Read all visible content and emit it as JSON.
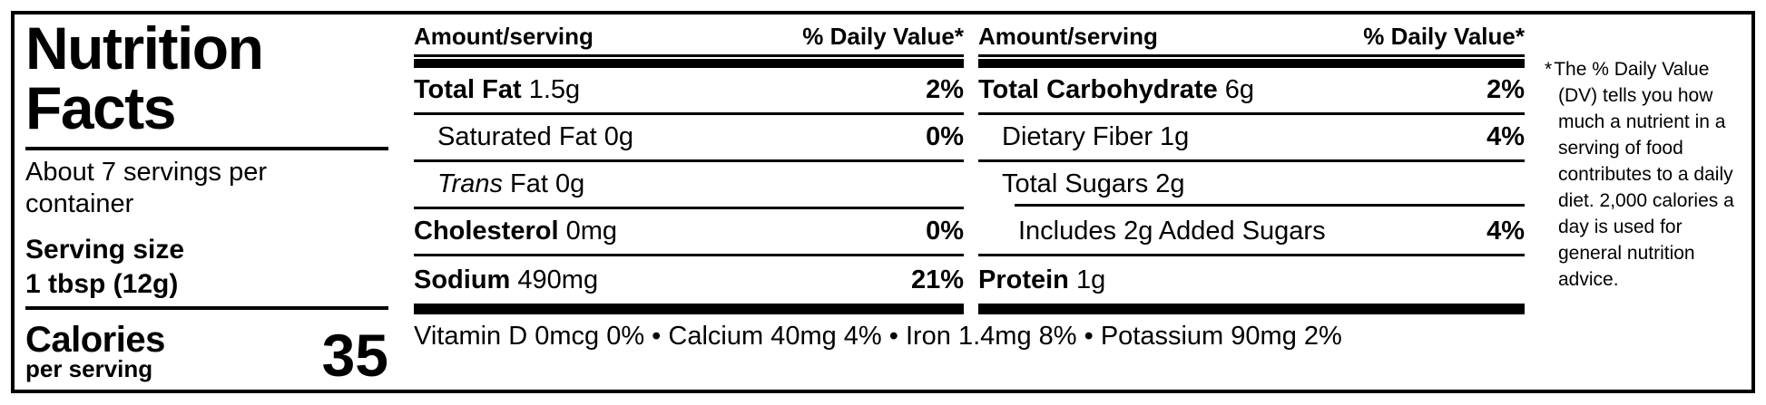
{
  "label": {
    "title": "Nutrition\nFacts",
    "servings_per_container": "About 7 servings per container",
    "serving_size_label": "Serving size",
    "serving_size_value": "1 tbsp (12g)",
    "calories_label": "Calories",
    "calories_sublabel": "per serving",
    "calories_value": "35"
  },
  "columns": [
    {
      "header_amount": "Amount/serving",
      "header_dv": "% Daily Value*",
      "rows": [
        {
          "bold": "Total Fat",
          "regular": " 1.5g",
          "dv": "2%"
        },
        {
          "regular": "Saturated Fat 0g",
          "dv": "0%"
        },
        {
          "italic": "Trans",
          "regular": " Fat 0g",
          "dv": ""
        },
        {
          "bold": "Cholesterol",
          "regular": " 0mg",
          "dv": "0%"
        },
        {
          "bold": "Sodium",
          "regular": " 490mg",
          "dv": "21%"
        }
      ]
    },
    {
      "header_amount": "Amount/serving",
      "header_dv": "% Daily Value*",
      "rows": [
        {
          "bold": "Total Carbohydrate",
          "regular": " 6g",
          "dv": "2%"
        },
        {
          "regular": "Dietary Fiber 1g",
          "dv": "4%"
        },
        {
          "regular": "Total Sugars 2g",
          "dv": ""
        },
        {
          "regular": "Includes 2g Added Sugars",
          "dv": "4%"
        },
        {
          "bold": "Protein",
          "regular": " 1g",
          "dv": ""
        }
      ]
    }
  ],
  "micronutrients": "Vitamin D 0mcg 0% • Calcium 40mg 4% • Iron 1.4mg 8% • Potassium 90mg 2%",
  "footnote": {
    "marker": "*",
    "text": "The % Daily Value (DV) tells you how much a nutrient in a serving of food contributes to a daily diet. 2,000 calories a day is used for general nutrition advice."
  },
  "colors": {
    "ink": "#000000",
    "background": "#ffffff"
  }
}
